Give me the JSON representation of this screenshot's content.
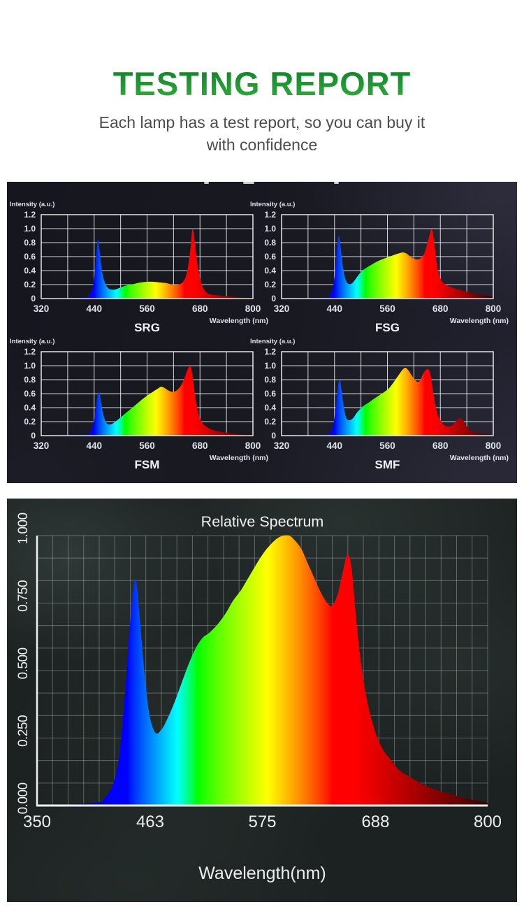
{
  "theme": {
    "title_gradient_top": "#0d7c2a",
    "title_gradient_bottom": "#31b23a",
    "subtitle_gray": "#4c4c4c",
    "small_chart_text": "#dfe3ec",
    "big_chart_text": "#eceeec"
  },
  "header": {
    "title": "TESTING REPORT",
    "subtitle_line1": "Each lamp has a test report, so you can buy it",
    "subtitle_line2": "with confidence"
  },
  "chart_data": [
    {
      "type": "area",
      "variant": "small",
      "title": "SRG",
      "ylabel": "Intensity (a.u.)",
      "xlabel": "Wavelength (nm)",
      "xlim": [
        320,
        800
      ],
      "ylim": [
        0,
        1.2
      ],
      "xticks": [
        320,
        440,
        560,
        680,
        800
      ],
      "yticks": [
        "1.2",
        "1.0",
        "0.8",
        "0.6",
        "0.4",
        "0.2",
        "0"
      ],
      "grid": {
        "nx": 8,
        "ny": 6
      },
      "x": [
        320,
        415,
        425,
        432,
        438,
        444,
        448,
        452,
        457,
        463,
        470,
        478,
        488,
        500,
        515,
        530,
        545,
        560,
        575,
        590,
        605,
        618,
        630,
        640,
        648,
        654,
        659,
        663,
        667,
        672,
        678,
        685,
        693,
        703,
        715,
        730,
        750,
        775,
        800
      ],
      "y": [
        0,
        0.01,
        0.03,
        0.08,
        0.2,
        0.55,
        0.85,
        0.7,
        0.42,
        0.25,
        0.16,
        0.13,
        0.13,
        0.16,
        0.19,
        0.21,
        0.23,
        0.24,
        0.24,
        0.23,
        0.22,
        0.2,
        0.2,
        0.23,
        0.32,
        0.5,
        0.75,
        1.0,
        0.85,
        0.6,
        0.35,
        0.18,
        0.1,
        0.06,
        0.05,
        0.04,
        0.03,
        0.02,
        0.015
      ]
    },
    {
      "type": "area",
      "variant": "small",
      "title": "FSG",
      "ylabel": "Intensity (a.u.)",
      "xlabel": "Wavelength (nm)",
      "xlim": [
        320,
        800
      ],
      "ylim": [
        0,
        1.2
      ],
      "xticks": [
        320,
        440,
        560,
        680,
        800
      ],
      "yticks": [
        "1.2",
        "1.0",
        "0.8",
        "0.6",
        "0.4",
        "0.2",
        "0"
      ],
      "grid": {
        "nx": 8,
        "ny": 6
      },
      "x": [
        320,
        418,
        428,
        435,
        441,
        446,
        450,
        454,
        459,
        465,
        472,
        480,
        488,
        496,
        505,
        515,
        528,
        540,
        552,
        565,
        578,
        588,
        596,
        604,
        612,
        620,
        628,
        636,
        644,
        650,
        656,
        660,
        664,
        668,
        673,
        679,
        686,
        695,
        706,
        720,
        740,
        765,
        800
      ],
      "y": [
        0,
        0.01,
        0.04,
        0.12,
        0.35,
        0.75,
        0.9,
        0.72,
        0.45,
        0.27,
        0.21,
        0.22,
        0.28,
        0.35,
        0.41,
        0.45,
        0.5,
        0.54,
        0.57,
        0.6,
        0.63,
        0.65,
        0.66,
        0.64,
        0.6,
        0.57,
        0.56,
        0.58,
        0.65,
        0.78,
        0.92,
        1.0,
        0.9,
        0.7,
        0.45,
        0.3,
        0.23,
        0.19,
        0.16,
        0.13,
        0.1,
        0.06,
        0.03
      ]
    },
    {
      "type": "area",
      "variant": "small",
      "title": "FSM",
      "ylabel": "Intensity (a.u.)",
      "xlabel": "Wavelength (nm)",
      "xlim": [
        320,
        800
      ],
      "ylim": [
        0,
        1.2
      ],
      "xticks": [
        320,
        440,
        560,
        680,
        800
      ],
      "yticks": [
        "1.2",
        "1.0",
        "0.8",
        "0.6",
        "0.4",
        "0.2",
        "0"
      ],
      "grid": {
        "nx": 8,
        "ny": 6
      },
      "x": [
        320,
        418,
        428,
        436,
        442,
        447,
        451,
        455,
        460,
        466,
        473,
        481,
        490,
        500,
        511,
        523,
        536,
        549,
        562,
        574,
        584,
        592,
        600,
        607,
        614,
        621,
        628,
        635,
        642,
        648,
        653,
        657,
        661,
        665,
        670,
        676,
        683,
        692,
        702,
        715,
        732,
        755,
        778,
        800
      ],
      "y": [
        0,
        0.01,
        0.04,
        0.12,
        0.3,
        0.55,
        0.62,
        0.5,
        0.32,
        0.2,
        0.16,
        0.17,
        0.21,
        0.26,
        0.32,
        0.38,
        0.45,
        0.52,
        0.58,
        0.63,
        0.67,
        0.7,
        0.68,
        0.65,
        0.63,
        0.63,
        0.65,
        0.7,
        0.78,
        0.88,
        0.96,
        1.0,
        0.93,
        0.75,
        0.52,
        0.32,
        0.2,
        0.14,
        0.1,
        0.07,
        0.05,
        0.03,
        0.02,
        0.015
      ]
    },
    {
      "type": "area",
      "variant": "small",
      "title": "SMF",
      "ylabel": "Intensity (a.u.)",
      "xlabel": "Wavelength (nm)",
      "xlim": [
        320,
        800
      ],
      "ylim": [
        0,
        1.2
      ],
      "xticks": [
        320,
        440,
        560,
        680,
        800
      ],
      "yticks": [
        "1.2",
        "1.0",
        "0.8",
        "0.6",
        "0.4",
        "0.2",
        "0"
      ],
      "grid": {
        "nx": 8,
        "ny": 6
      },
      "x": [
        320,
        420,
        430,
        437,
        443,
        448,
        452,
        456,
        461,
        467,
        474,
        482,
        490,
        498,
        507,
        517,
        528,
        540,
        552,
        564,
        576,
        586,
        594,
        601,
        608,
        615,
        622,
        628,
        634,
        640,
        646,
        653,
        658,
        663,
        668,
        674,
        680,
        687,
        697,
        707,
        716,
        724,
        731,
        740,
        752,
        770,
        800
      ],
      "y": [
        0,
        0.01,
        0.05,
        0.15,
        0.4,
        0.7,
        0.8,
        0.65,
        0.4,
        0.25,
        0.22,
        0.25,
        0.32,
        0.38,
        0.43,
        0.47,
        0.52,
        0.57,
        0.62,
        0.68,
        0.78,
        0.87,
        0.94,
        0.97,
        0.93,
        0.86,
        0.8,
        0.77,
        0.79,
        0.87,
        0.93,
        0.95,
        0.85,
        0.65,
        0.45,
        0.3,
        0.22,
        0.16,
        0.13,
        0.15,
        0.21,
        0.25,
        0.22,
        0.13,
        0.06,
        0.03,
        0.01
      ]
    },
    {
      "type": "area",
      "variant": "large",
      "title": "Relative Spectrum",
      "ylabel": "",
      "xlabel": "Wavelength(nm)",
      "xlim": [
        350,
        800
      ],
      "ylim": [
        0,
        1.0
      ],
      "xticks": [
        350,
        463,
        575,
        688,
        800
      ],
      "yticks": [
        "1.000",
        "0.750",
        "0.500",
        "0.250",
        "0.000"
      ],
      "grid": {
        "nx": 29,
        "ny": 12
      },
      "x": [
        350,
        408,
        418,
        426,
        432,
        438,
        443,
        448,
        452,
        457,
        462,
        468,
        474,
        480,
        487,
        494,
        501,
        508,
        515,
        522,
        530,
        538,
        546,
        554,
        562,
        570,
        577,
        584,
        590,
        596,
        602,
        608,
        614,
        620,
        626,
        632,
        638,
        644,
        650,
        655,
        660,
        664,
        668,
        673,
        680,
        688,
        695,
        703,
        712,
        725,
        740,
        760,
        780,
        800
      ],
      "y": [
        0,
        0.01,
        0.03,
        0.08,
        0.18,
        0.42,
        0.68,
        0.84,
        0.72,
        0.5,
        0.34,
        0.27,
        0.28,
        0.32,
        0.38,
        0.45,
        0.52,
        0.58,
        0.62,
        0.64,
        0.67,
        0.71,
        0.76,
        0.8,
        0.85,
        0.9,
        0.94,
        0.97,
        0.99,
        1.0,
        1.0,
        0.98,
        0.95,
        0.9,
        0.85,
        0.8,
        0.76,
        0.74,
        0.78,
        0.86,
        0.93,
        0.88,
        0.72,
        0.54,
        0.38,
        0.27,
        0.21,
        0.17,
        0.13,
        0.1,
        0.07,
        0.045,
        0.025,
        0.01
      ]
    }
  ]
}
